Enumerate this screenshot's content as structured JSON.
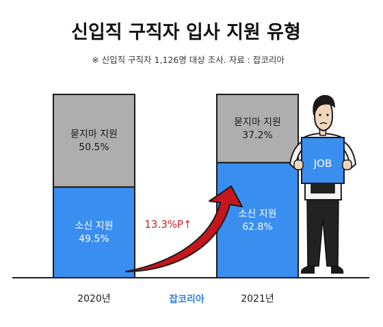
{
  "colors": {
    "background": "#ffffff",
    "lower_segment": "#3a8ef0",
    "upper_segment": "#aeaeae",
    "outline": "#1a1a1a",
    "change_label": "#d11f1f",
    "arrow": "#c4161c",
    "watermark": "#2f7fe6"
  },
  "chart_data": {
    "type": "bar",
    "stacked": true,
    "title": "신입직 구직자 입사 지원 유형",
    "subtitle": "※ 신입직 구직자 1,126명 대상 조사. 자료 : 잡코리아",
    "xlabel": "",
    "ylabel": "",
    "ylim": [
      0,
      100
    ],
    "unit": "%",
    "categories": [
      "2020년",
      "2021년"
    ],
    "series": [
      {
        "name": "소신 지원",
        "values": [
          49.5,
          62.8
        ],
        "labels": [
          "49.5%",
          "62.8%"
        ]
      },
      {
        "name": "묻지마 지원",
        "values": [
          50.5,
          37.2
        ],
        "labels": [
          "50.5%",
          "37.2%"
        ]
      }
    ],
    "annotation": "13.3%P↑",
    "source": "잡코리아",
    "illustration_sign": "JOB"
  }
}
